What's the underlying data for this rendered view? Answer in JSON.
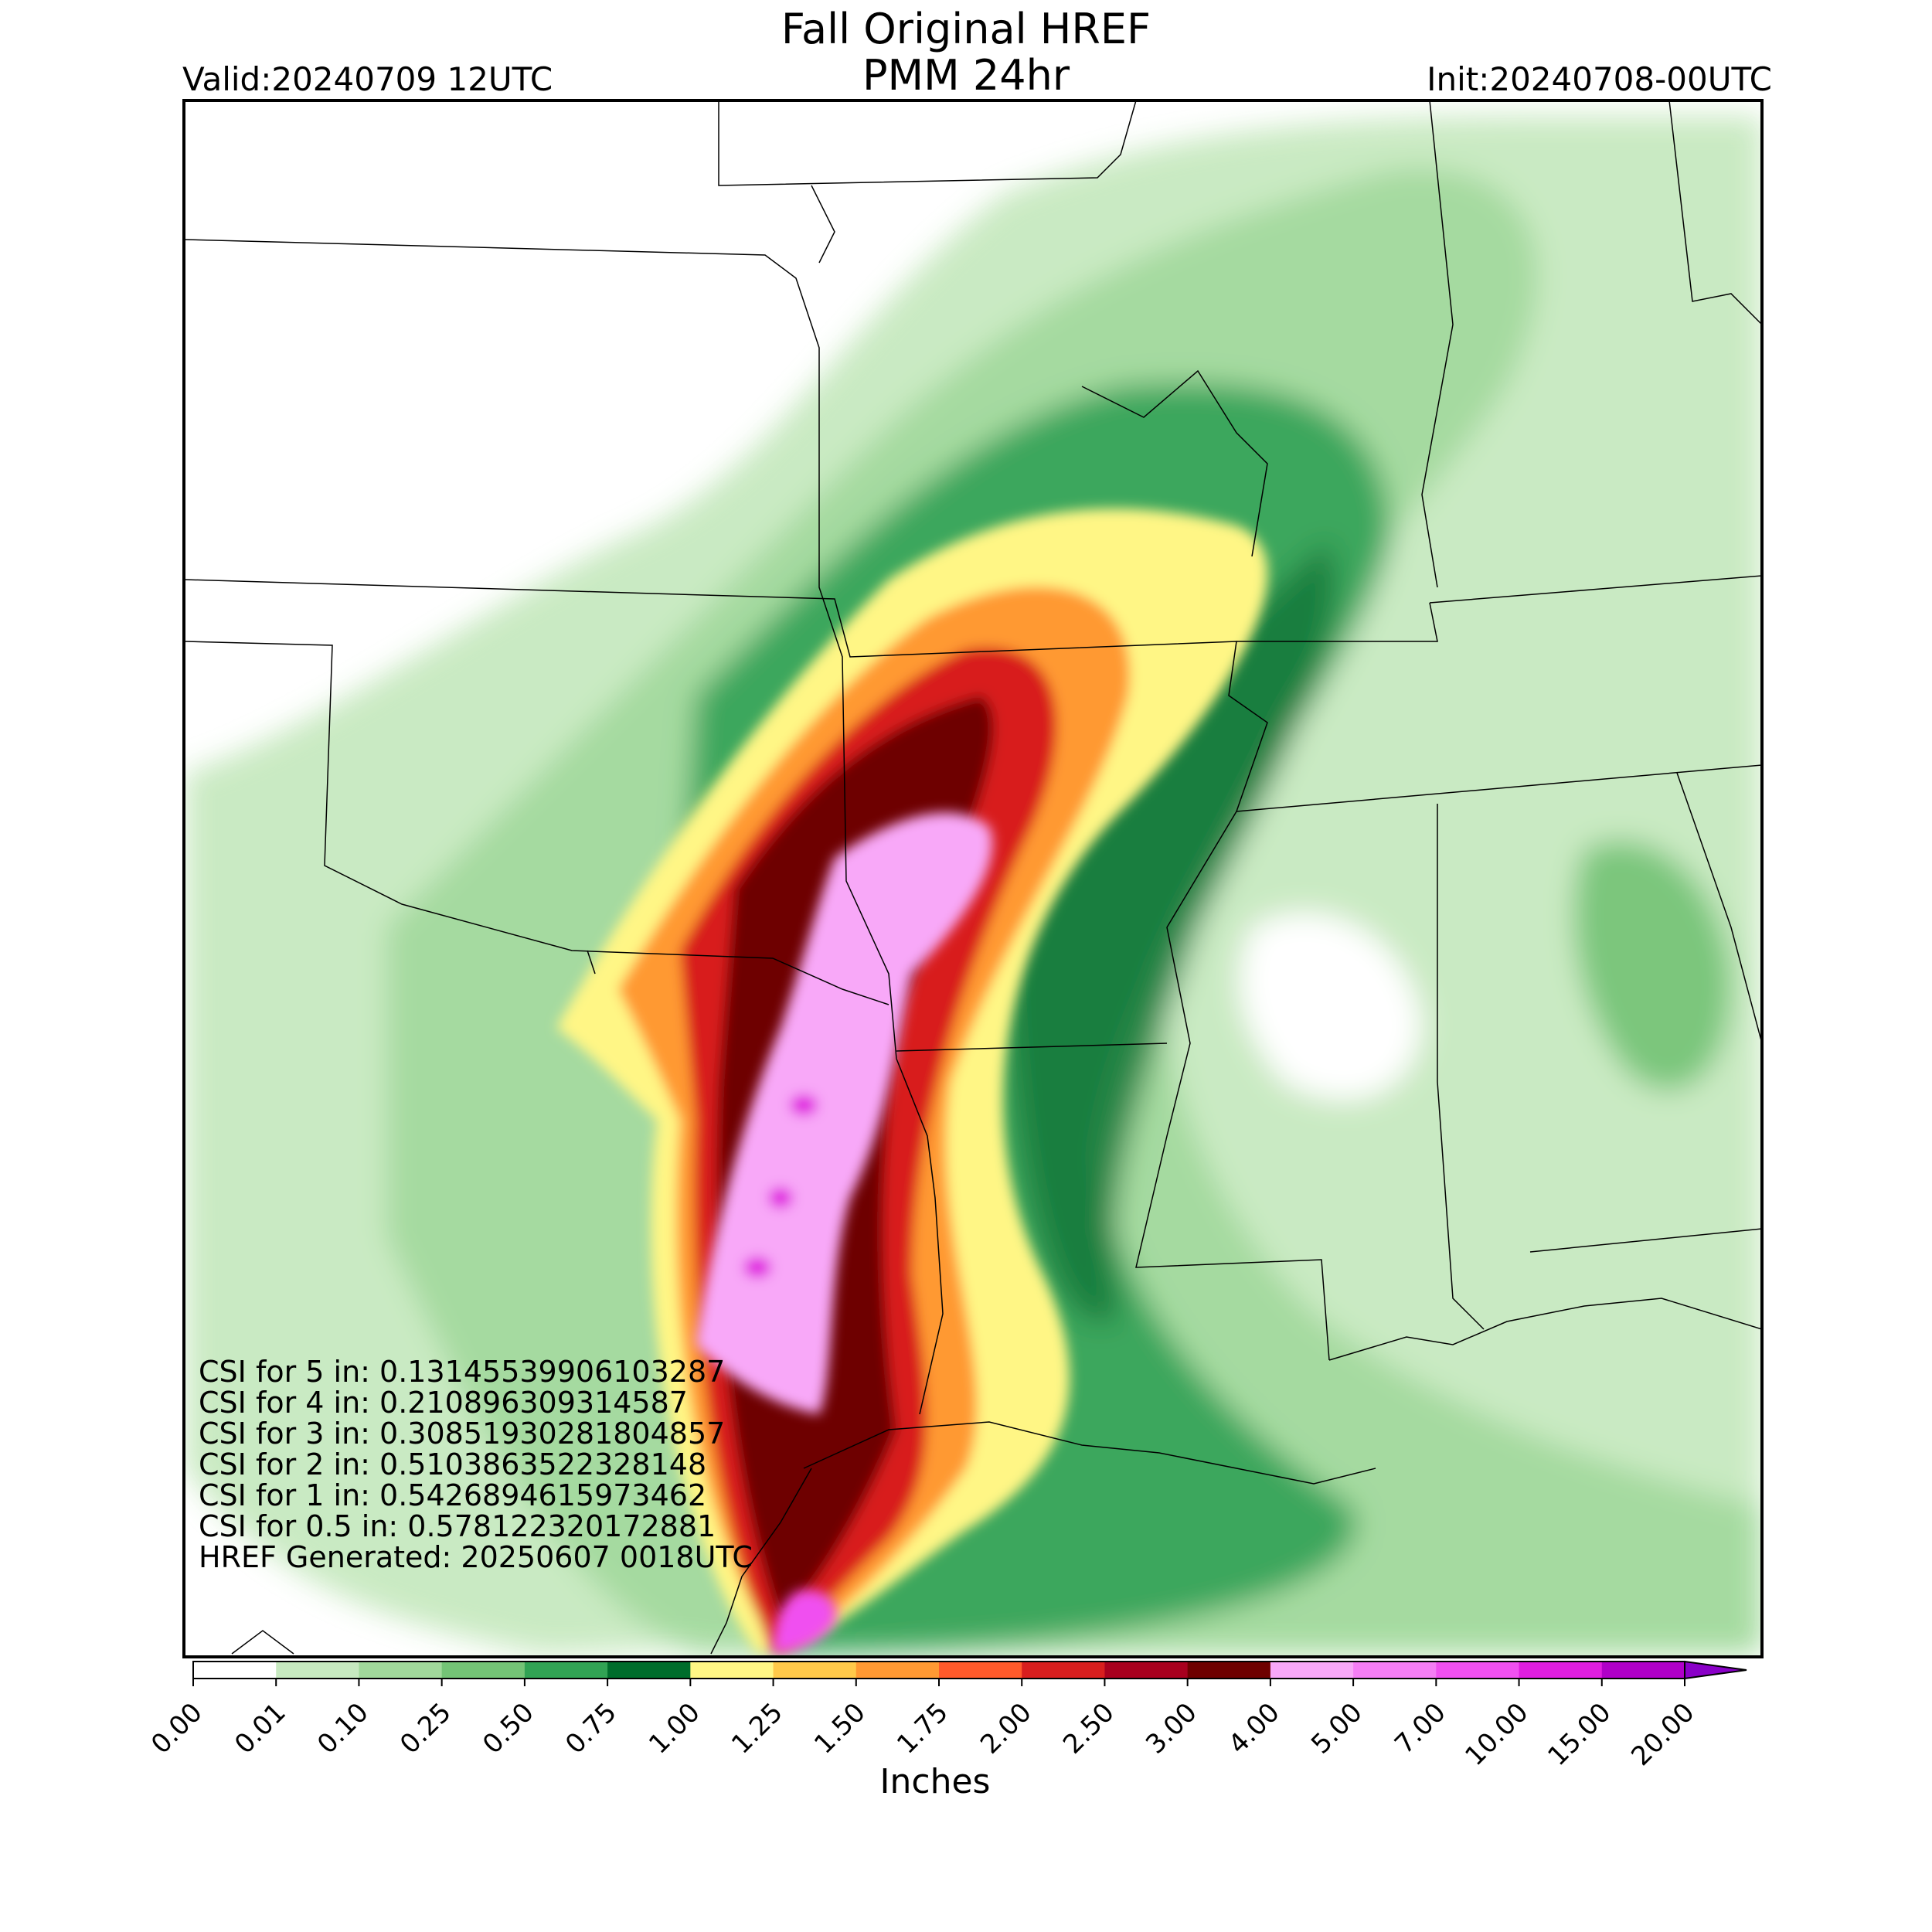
{
  "header": {
    "title_line1": "Fall Original HREF",
    "title_line2": "PMM 24hr",
    "valid": "Valid:20240709 12UTC",
    "init": "Init:20240708-00UTC"
  },
  "stats": [
    "CSI for 5 in: 0.13145539906103287",
    "CSI for 4 in: 0.210896309314587",
    "CSI for 3 in: 0.30851930281804857",
    "CSI for 2 in: 0.5103863522328148",
    "CSI for 1 in: 0.542689461597346​2",
    "CSI for 0.5 in: 0.578122320172881",
    "HREF Generated: 20250607 0018UTC"
  ],
  "colorbar": {
    "label": "Inches",
    "ticks": [
      "0.00",
      "0.01",
      "0.10",
      "0.25",
      "0.50",
      "0.75",
      "1.00",
      "1.25",
      "1.50",
      "1.75",
      "2.00",
      "2.50",
      "3.00",
      "4.00",
      "5.00",
      "7.00",
      "10.00",
      "15.00",
      "20.00"
    ],
    "colors": [
      "#ffffff",
      "#c7e9c0",
      "#a1d99b",
      "#74c476",
      "#31a354",
      "#006d2c",
      "#fff685",
      "#ffc94a",
      "#ff9933",
      "#ff5a2b",
      "#d81e1e",
      "#a8001e",
      "#6e0000",
      "#f8a8f8",
      "#f57ef5",
      "#f050f0",
      "#e01ee0",
      "#b000c8",
      "#8a00c8"
    ],
    "extend": "max"
  },
  "map_colors": {
    "light_green": "#c7e9c0",
    "green2": "#a1d99b",
    "green3": "#74c476",
    "green4": "#31a354",
    "dark_green": "#006d2c",
    "yellow": "#fff685",
    "orange": "#ff9933",
    "red": "#d81e1e",
    "dark_red": "#6e0000",
    "pink": "#f8a8f8",
    "magenta": "#e01ee0"
  }
}
